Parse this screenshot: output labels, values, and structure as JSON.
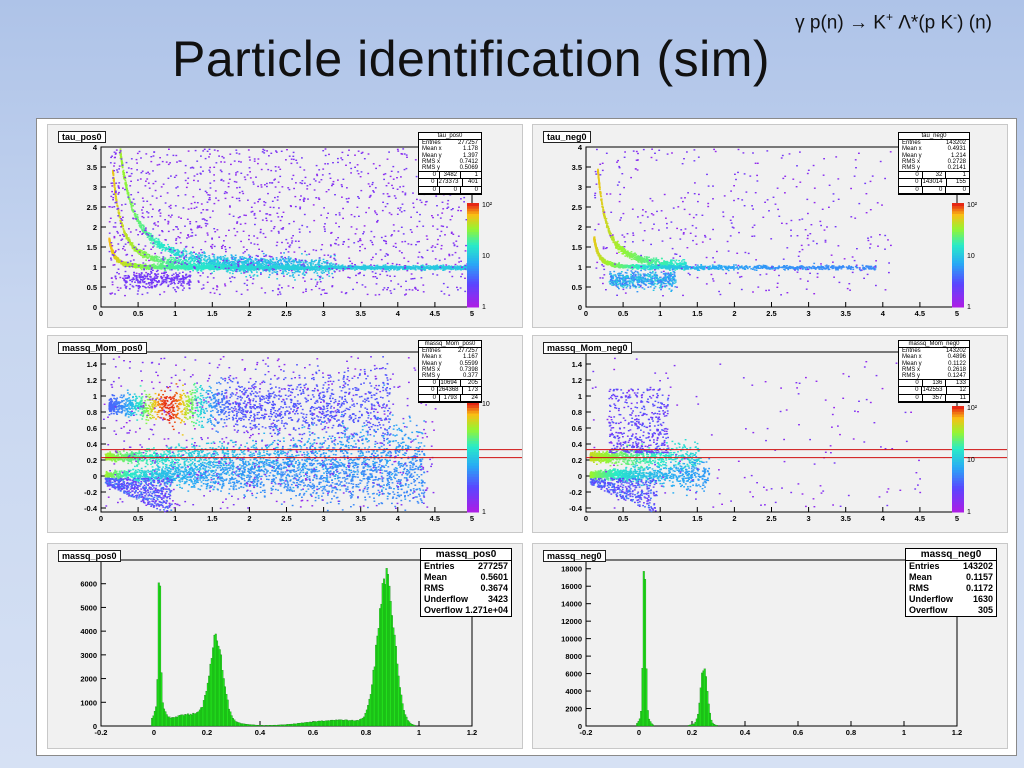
{
  "slide": {
    "reaction": {
      "gamma": "γ",
      "rest": " p(n) → K",
      "plus": "+",
      "lambda": " Λ*(p K",
      "minus": "-",
      "tail": ") (n)"
    },
    "title": "Particle identification (sim)"
  },
  "chart_data": [
    {
      "type": "heatmap",
      "title": "tau_pos0",
      "xlim": [
        0,
        5
      ],
      "ylim": [
        0,
        4
      ],
      "x_ticks": [
        "0",
        "0.5",
        "1",
        "1.5",
        "2",
        "2.5",
        "3",
        "3.5",
        "4",
        "4.5",
        "5"
      ],
      "y_ticks": [
        "0",
        "0.5",
        "1",
        "1.5",
        "2",
        "2.5",
        "3",
        "3.5",
        "4"
      ],
      "z_scale": "log",
      "z_ticks": [
        "1",
        "10",
        "10²"
      ],
      "stats": {
        "name": "tau_pos0",
        "rows": [
          [
            "Entries",
            "277257"
          ],
          [
            "Mean x",
            "1.178"
          ],
          [
            "Mean y",
            "1.397"
          ],
          [
            "RMS x",
            "0.7412"
          ],
          [
            "RMS y",
            "0.5069"
          ]
        ],
        "grid": [
          [
            "0",
            "3482",
            "1"
          ],
          [
            "0",
            "273373",
            "401"
          ],
          [
            "0",
            "0",
            "0"
          ]
        ]
      }
    },
    {
      "type": "heatmap",
      "title": "tau_neg0",
      "xlim": [
        0,
        5
      ],
      "ylim": [
        0,
        4
      ],
      "x_ticks": [
        "0",
        "0.5",
        "1",
        "1.5",
        "2",
        "2.5",
        "3",
        "3.5",
        "4",
        "4.5",
        "5"
      ],
      "y_ticks": [
        "0",
        "0.5",
        "1",
        "1.5",
        "2",
        "2.5",
        "3",
        "3.5",
        "4"
      ],
      "z_scale": "log",
      "z_ticks": [
        "1",
        "10",
        "10²"
      ],
      "stats": {
        "name": "tau_neg0",
        "rows": [
          [
            "Entries",
            "143202"
          ],
          [
            "Mean x",
            "0.4931"
          ],
          [
            "Mean y",
            "1.214"
          ],
          [
            "RMS x",
            "0.2728"
          ],
          [
            "RMS y",
            "0.2141"
          ]
        ],
        "grid": [
          [
            "0",
            "32",
            "1"
          ],
          [
            "0",
            "143014",
            "155"
          ],
          [
            "0",
            "0",
            "0"
          ]
        ]
      }
    },
    {
      "type": "heatmap",
      "title": "massq_Mom_pos0",
      "xlim": [
        0,
        5
      ],
      "ylim": [
        -0.45,
        1.55
      ],
      "x_ticks": [
        "0",
        "0.5",
        "1",
        "1.5",
        "2",
        "2.5",
        "3",
        "3.5",
        "4",
        "4.5",
        "5"
      ],
      "y_ticks": [
        "-0.4",
        "-0.2",
        "0",
        "0.2",
        "0.4",
        "0.6",
        "0.8",
        "1",
        "1.2",
        "1.4"
      ],
      "z_scale": "log",
      "z_ticks": [
        "1",
        "10"
      ],
      "cut_lines_y": [
        0.23,
        0.33
      ],
      "stats": {
        "name": "massq_Mom_pos0",
        "rows": [
          [
            "Entries",
            "277257"
          ],
          [
            "Mean x",
            "1.167"
          ],
          [
            "Mean y",
            "0.5599"
          ],
          [
            "RMS x",
            "0.7398"
          ],
          [
            "RMS y",
            "0.377"
          ]
        ],
        "grid": [
          [
            "0",
            "10694",
            "205"
          ],
          [
            "0",
            "264368",
            "173"
          ],
          [
            "0",
            "1793",
            "24"
          ]
        ]
      }
    },
    {
      "type": "heatmap",
      "title": "massq_Mom_neg0",
      "xlim": [
        0,
        5
      ],
      "ylim": [
        -0.45,
        1.55
      ],
      "x_ticks": [
        "0",
        "0.5",
        "1",
        "1.5",
        "2",
        "2.5",
        "3",
        "3.5",
        "4",
        "4.5",
        "5"
      ],
      "y_ticks": [
        "-0.4",
        "-0.2",
        "0",
        "0.2",
        "0.4",
        "0.6",
        "0.8",
        "1",
        "1.2",
        "1.4"
      ],
      "z_scale": "log",
      "z_ticks": [
        "1",
        "10",
        "10²"
      ],
      "cut_lines_y": [
        0.23,
        0.33
      ],
      "stats": {
        "name": "massq_Mom_neg0",
        "rows": [
          [
            "Entries",
            "143202"
          ],
          [
            "Mean x",
            "0.4896"
          ],
          [
            "Mean y",
            "0.1122"
          ],
          [
            "RMS x",
            "0.2618"
          ],
          [
            "RMS y",
            "0.1247"
          ]
        ],
        "grid": [
          [
            "0",
            "136",
            "133"
          ],
          [
            "0",
            "142553",
            "12"
          ],
          [
            "0",
            "357",
            "11"
          ]
        ]
      }
    },
    {
      "type": "bar",
      "title": "massq_pos0",
      "xlim": [
        -0.2,
        1.2
      ],
      "ylim": [
        0,
        7000
      ],
      "x_ticks": [
        "-0.2",
        "0",
        "0.2",
        "0.4",
        "0.6",
        "0.8",
        "1",
        "1.2"
      ],
      "y_ticks": [
        "0",
        "1000",
        "2000",
        "3000",
        "4000",
        "5000",
        "6000"
      ],
      "peaks": [
        {
          "mean": 0.02,
          "sigma": 0.004,
          "height": 6300
        },
        {
          "mean": 0.02,
          "sigma": 0.015,
          "height": 900
        },
        {
          "mean": 0.235,
          "sigma": 0.025,
          "height": 3400
        },
        {
          "mean": 0.15,
          "sigma": 0.1,
          "height": 500
        },
        {
          "mean": 0.875,
          "sigma": 0.032,
          "height": 6200
        },
        {
          "mean": 0.7,
          "sigma": 0.12,
          "height": 250
        }
      ],
      "stats": {
        "name": "massq_pos0",
        "rows": [
          [
            "Entries",
            "277257"
          ],
          [
            "Mean",
            "0.5601"
          ],
          [
            "RMS",
            "0.3674"
          ],
          [
            "Underflow",
            "3423"
          ],
          [
            "Overflow",
            "1.271e+04"
          ]
        ]
      }
    },
    {
      "type": "bar",
      "title": "massq_neg0",
      "xlim": [
        -0.2,
        1.2
      ],
      "ylim": [
        0,
        19000
      ],
      "x_ticks": [
        "-0.2",
        "0",
        "0.2",
        "0.4",
        "0.6",
        "0.8",
        "1",
        "1.2"
      ],
      "y_ticks": [
        "0",
        "2000",
        "4000",
        "6000",
        "8000",
        "10000",
        "12000",
        "14000",
        "16000",
        "18000"
      ],
      "peaks": [
        {
          "mean": 0.02,
          "sigma": 0.005,
          "height": 16900
        },
        {
          "mean": 0.02,
          "sigma": 0.015,
          "height": 1500
        },
        {
          "mean": 0.245,
          "sigma": 0.012,
          "height": 6500
        },
        {
          "mean": 0.24,
          "sigma": 0.03,
          "height": 400
        }
      ],
      "stats": {
        "name": "massq_neg0",
        "rows": [
          [
            "Entries",
            "143202"
          ],
          [
            "Mean",
            "0.1157"
          ],
          [
            "RMS",
            "0.1172"
          ],
          [
            "Underflow",
            "1630"
          ],
          [
            "Overflow",
            "305"
          ]
        ]
      }
    }
  ]
}
